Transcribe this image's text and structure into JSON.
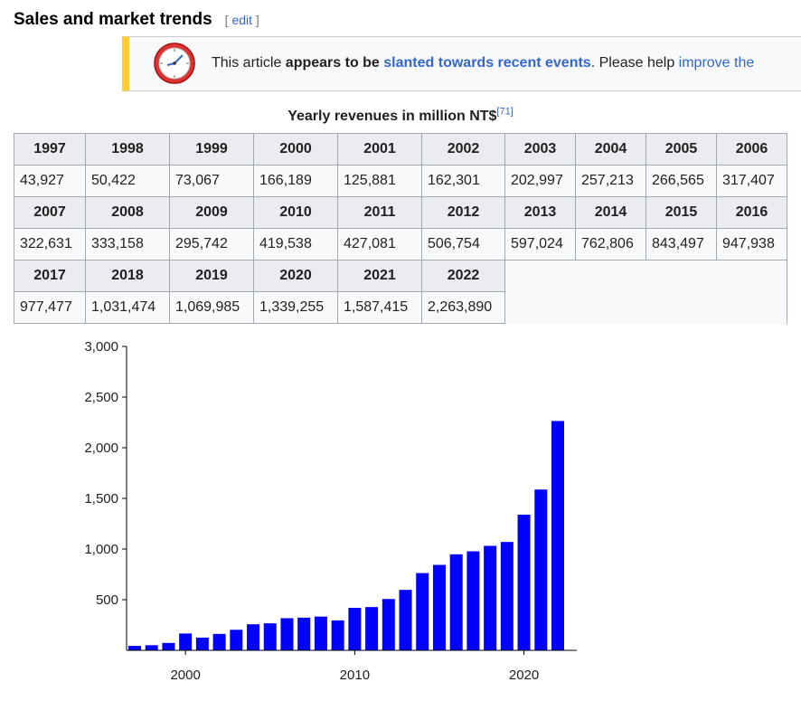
{
  "section": {
    "title": "Sales and market trends",
    "edit_open": "[",
    "edit_label": "edit",
    "edit_close": "]"
  },
  "notice": {
    "icon": "clock-icon",
    "text_1": "This article ",
    "text_bold": "appears to be ",
    "link_1": "slanted towards recent events",
    "text_2": ". Please help ",
    "link_2": "improve the"
  },
  "table": {
    "caption": "Yearly revenues in million NT$",
    "ref": "[71]",
    "rows": [
      {
        "years": [
          "1997",
          "1998",
          "1999",
          "2000",
          "2001",
          "2002",
          "2003",
          "2004",
          "2005",
          "2006"
        ],
        "values": [
          "43,927",
          "50,422",
          "73,067",
          "166,189",
          "125,881",
          "162,301",
          "202,997",
          "257,213",
          "266,565",
          "317,407"
        ]
      },
      {
        "years": [
          "2007",
          "2008",
          "2009",
          "2010",
          "2011",
          "2012",
          "2013",
          "2014",
          "2015",
          "2016"
        ],
        "values": [
          "322,631",
          "333,158",
          "295,742",
          "419,538",
          "427,081",
          "506,754",
          "597,024",
          "762,806",
          "843,497",
          "947,938"
        ]
      },
      {
        "years": [
          "2017",
          "2018",
          "2019",
          "2020",
          "2021",
          "2022"
        ],
        "values": [
          "977,477",
          "1,031,474",
          "1,069,985",
          "1,339,255",
          "1,587,415",
          "2,263,890"
        ]
      }
    ]
  },
  "chart_data": {
    "type": "bar",
    "x": [
      1997,
      1998,
      1999,
      2000,
      2001,
      2002,
      2003,
      2004,
      2005,
      2006,
      2007,
      2008,
      2009,
      2010,
      2011,
      2012,
      2013,
      2014,
      2015,
      2016,
      2017,
      2018,
      2019,
      2020,
      2021,
      2022
    ],
    "values": [
      43.927,
      50.422,
      73.067,
      166.189,
      125.881,
      162.301,
      202.997,
      257.213,
      266.565,
      317.407,
      322.631,
      333.158,
      295.742,
      419.538,
      427.081,
      506.754,
      597.024,
      762.806,
      843.497,
      947.938,
      977.477,
      1031.474,
      1069.985,
      1339.255,
      1587.415,
      2263.89
    ],
    "ylim": [
      0,
      3000
    ],
    "yticks": [
      500,
      1000,
      1500,
      2000,
      2500,
      3000
    ],
    "ytick_labels": [
      "500",
      "1,000",
      "1,500",
      "2,000",
      "2,500",
      "3,000"
    ],
    "xticks": [
      2000,
      2010,
      2020
    ],
    "xtick_labels": [
      "2000",
      "2010",
      "2020"
    ],
    "bar_color": "#0000ff",
    "grid": false
  }
}
